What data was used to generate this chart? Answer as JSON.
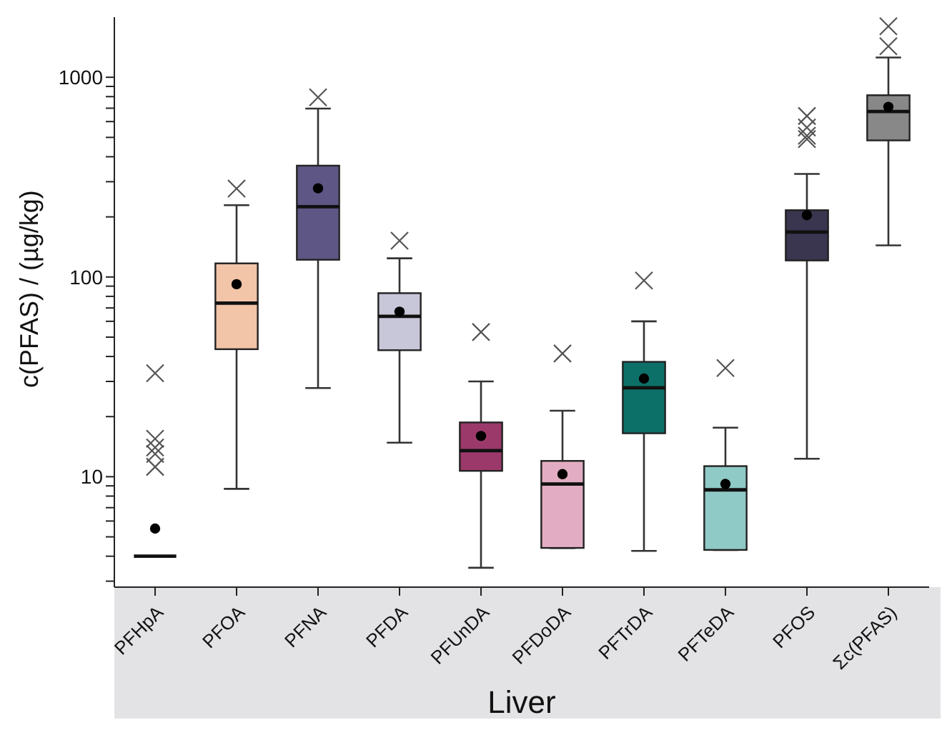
{
  "chart_data": {
    "type": "box",
    "xlabel": "Liver",
    "ylabel": "c(PFAS) / (µg/kg)",
    "categories": [
      "PFHpA",
      "PFOA",
      "PFNA",
      "PFDA",
      "PFUnDA",
      "PFDoDA",
      "PFTrDA",
      "PFTeDA",
      "PFOS",
      "Σc(PFAS)"
    ],
    "colors": [
      "#111111",
      "#f2c4a8",
      "#5e5785",
      "#c8c6d9",
      "#9b3a6a",
      "#e2adc2",
      "#0d7068",
      "#8fcac6",
      "#3a3650",
      "#888888"
    ],
    "boxes": [
      {
        "low": 4,
        "q1": 4,
        "median": 4,
        "q3": 4,
        "high": 4,
        "mean": 5.5,
        "outliers": [
          33,
          15.5,
          14,
          13,
          11.2
        ]
      },
      {
        "low": 8.7,
        "q1": 43.5,
        "median": 74,
        "q3": 117,
        "high": 229,
        "mean": 92,
        "outliers": [
          277
        ]
      },
      {
        "low": 27.8,
        "q1": 122,
        "median": 225,
        "q3": 361,
        "high": 697,
        "mean": 278,
        "outliers": [
          793
        ]
      },
      {
        "low": 14.8,
        "q1": 43,
        "median": 63.5,
        "q3": 83,
        "high": 124,
        "mean": 67,
        "outliers": [
          152
        ]
      },
      {
        "low": 3.5,
        "q1": 10.7,
        "median": 13.5,
        "q3": 18.7,
        "high": 30,
        "mean": 16,
        "outliers": [
          53
        ]
      },
      {
        "low": 4.4,
        "q1": 4.4,
        "median": 9.2,
        "q3": 12,
        "high": 21.4,
        "mean": 10.3,
        "outliers": [
          41.4
        ]
      },
      {
        "low": 4.25,
        "q1": 16.5,
        "median": 27.9,
        "q3": 37.6,
        "high": 60,
        "mean": 31,
        "outliers": [
          96
        ]
      },
      {
        "low": 4.3,
        "q1": 4.3,
        "median": 8.6,
        "q3": 11.3,
        "high": 17.6,
        "mean": 9.2,
        "outliers": [
          35
        ]
      },
      {
        "low": 12.3,
        "q1": 121,
        "median": 168,
        "q3": 216,
        "high": 328,
        "mean": 204,
        "outliers": [
          640,
          560,
          510,
          490
        ]
      },
      {
        "low": 144,
        "q1": 483,
        "median": 674,
        "q3": 813,
        "high": 1256,
        "mean": 711,
        "outliers": [
          1800,
          1430
        ]
      }
    ],
    "log": true,
    "ylim": [
      2.8,
      2000
    ],
    "yticks": [
      {
        "value": 3,
        "label": null
      },
      {
        "value": 4,
        "label": null
      },
      {
        "value": 5,
        "label": null
      },
      {
        "value": 6,
        "label": null
      },
      {
        "value": 7,
        "label": null
      },
      {
        "value": 8,
        "label": null
      },
      {
        "value": 9,
        "label": null
      },
      10,
      {
        "value": 20,
        "label": null
      },
      {
        "value": 30,
        "label": null
      },
      {
        "value": 40,
        "label": null
      },
      {
        "value": 50,
        "label": null
      },
      {
        "value": 60,
        "label": null
      },
      {
        "value": 70,
        "label": null
      },
      {
        "value": 80,
        "label": null
      },
      {
        "value": 90,
        "label": null
      },
      100,
      {
        "value": 200,
        "label": null
      },
      {
        "value": 300,
        "label": null
      },
      {
        "value": 400,
        "label": null
      },
      {
        "value": 500,
        "label": null
      },
      {
        "value": 600,
        "label": null
      },
      {
        "value": 700,
        "label": null
      },
      {
        "value": 800,
        "label": null
      },
      {
        "value": 900,
        "label": null
      },
      1000
    ]
  }
}
